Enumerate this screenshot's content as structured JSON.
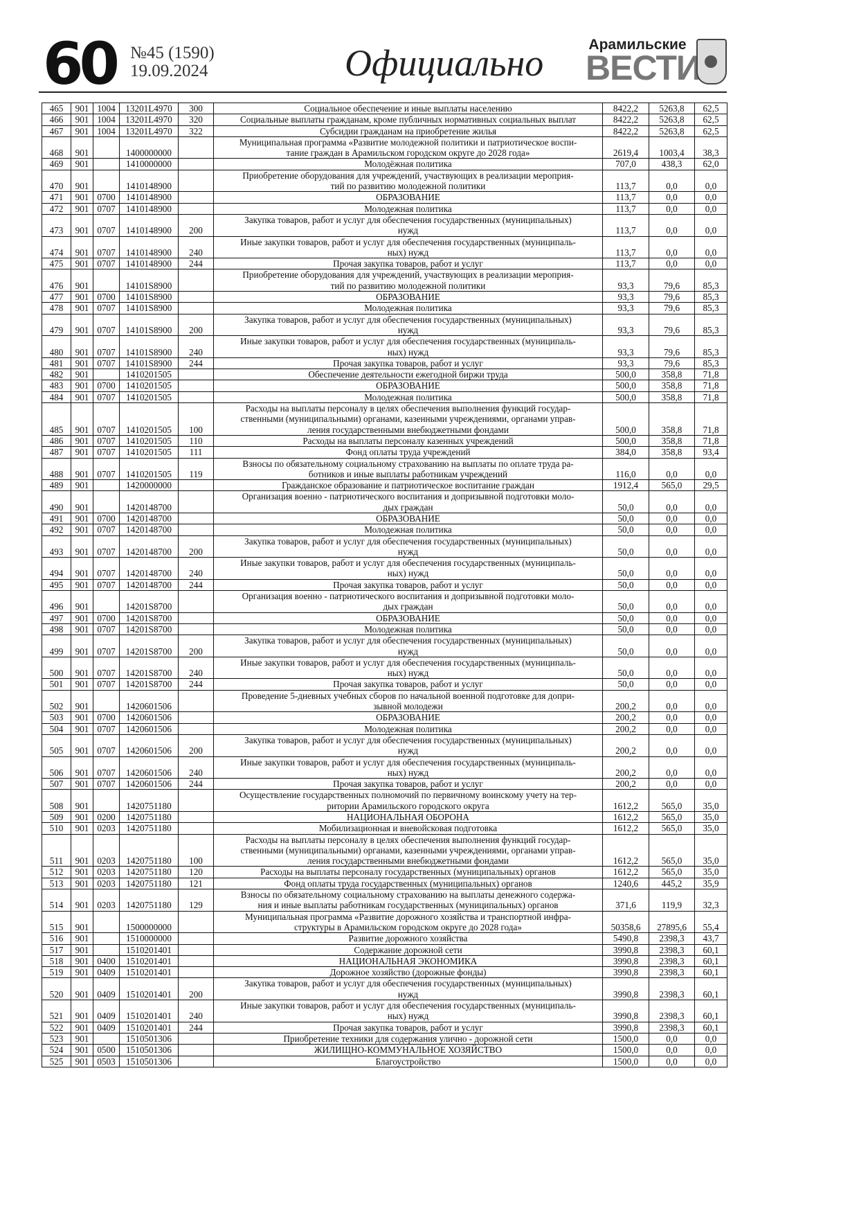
{
  "header": {
    "page_number": "60",
    "issue": "№45 (1590)",
    "date": "19.09.2024",
    "section": "Официально",
    "brand_line1": "Арамильские",
    "brand_line2": "ВЕСТИ"
  },
  "table": {
    "rows": [
      [
        "465",
        "901",
        "1004",
        "13201L4970",
        "300",
        "Социальное обеспечение и иные выплаты населению",
        "8422,2",
        "5263,8",
        "62,5"
      ],
      [
        "466",
        "901",
        "1004",
        "13201L4970",
        "320",
        "Социальные выплаты гражданам, кроме публичных нормативных социальных выплат",
        "8422,2",
        "5263,8",
        "62,5"
      ],
      [
        "467",
        "901",
        "1004",
        "13201L4970",
        "322",
        "Субсидии гражданам на приобретение жилья",
        "8422,2",
        "5263,8",
        "62,5"
      ],
      [
        "468",
        "901",
        "",
        "1400000000",
        "",
        "Муниципальная программа «Развитие молодежной политики и патриотическое воспи-\nтание граждан в Арамильском городском округе до 2028 года»",
        "2619,4",
        "1003,4",
        "38,3"
      ],
      [
        "469",
        "901",
        "",
        "1410000000",
        "",
        "Молодёжная политика",
        "707,0",
        "438,3",
        "62,0"
      ],
      [
        "470",
        "901",
        "",
        "1410148900",
        "",
        "Приобретение оборудования для учреждений, участвующих в реализации мероприя-\nтий по развитию молодежной политики",
        "113,7",
        "0,0",
        "0,0"
      ],
      [
        "471",
        "901",
        "0700",
        "1410148900",
        "",
        "ОБРАЗОВАНИЕ",
        "113,7",
        "0,0",
        "0,0"
      ],
      [
        "472",
        "901",
        "0707",
        "1410148900",
        "",
        "Молодежная политика",
        "113,7",
        "0,0",
        "0,0"
      ],
      [
        "473",
        "901",
        "0707",
        "1410148900",
        "200",
        "Закупка товаров, работ и услуг для обеспечения государственных (муниципальных)\nнужд",
        "113,7",
        "0,0",
        "0,0"
      ],
      [
        "474",
        "901",
        "0707",
        "1410148900",
        "240",
        "Иные закупки товаров, работ и услуг для обеспечения государственных (муниципаль-\nных) нужд",
        "113,7",
        "0,0",
        "0,0"
      ],
      [
        "475",
        "901",
        "0707",
        "1410148900",
        "244",
        "Прочая закупка товаров, работ и услуг",
        "113,7",
        "0,0",
        "0,0"
      ],
      [
        "476",
        "901",
        "",
        "14101S8900",
        "",
        "Приобретение оборудования для учреждений, участвующих в реализации мероприя-\nтий по развитию молодежной политики",
        "93,3",
        "79,6",
        "85,3"
      ],
      [
        "477",
        "901",
        "0700",
        "14101S8900",
        "",
        "ОБРАЗОВАНИЕ",
        "93,3",
        "79,6",
        "85,3"
      ],
      [
        "478",
        "901",
        "0707",
        "14101S8900",
        "",
        "Молодежная политика",
        "93,3",
        "79,6",
        "85,3"
      ],
      [
        "479",
        "901",
        "0707",
        "14101S8900",
        "200",
        "Закупка товаров, работ и услуг для обеспечения государственных (муниципальных)\nнужд",
        "93,3",
        "79,6",
        "85,3"
      ],
      [
        "480",
        "901",
        "0707",
        "14101S8900",
        "240",
        "Иные закупки товаров, работ и услуг для обеспечения государственных (муниципаль-\nных) нужд",
        "93,3",
        "79,6",
        "85,3"
      ],
      [
        "481",
        "901",
        "0707",
        "14101S8900",
        "244",
        "Прочая закупка товаров, работ и услуг",
        "93,3",
        "79,6",
        "85,3"
      ],
      [
        "482",
        "901",
        "",
        "1410201505",
        "",
        "Обеспечение деятельности ежегодной биржи труда",
        "500,0",
        "358,8",
        "71,8"
      ],
      [
        "483",
        "901",
        "0700",
        "1410201505",
        "",
        "ОБРАЗОВАНИЕ",
        "500,0",
        "358,8",
        "71,8"
      ],
      [
        "484",
        "901",
        "0707",
        "1410201505",
        "",
        "Молодежная политика",
        "500,0",
        "358,8",
        "71,8"
      ],
      [
        "485",
        "901",
        "0707",
        "1410201505",
        "100",
        "Расходы на выплаты персоналу в целях обеспечения выполнения функций государ-\nственными (муниципальными) органами, казенными учреждениями, органами управ-\nления государственными внебюджетными фондами",
        "500,0",
        "358,8",
        "71,8"
      ],
      [
        "486",
        "901",
        "0707",
        "1410201505",
        "110",
        "Расходы на выплаты персоналу казенных учреждений",
        "500,0",
        "358,8",
        "71,8"
      ],
      [
        "487",
        "901",
        "0707",
        "1410201505",
        "111",
        "Фонд оплаты труда учреждений",
        "384,0",
        "358,8",
        "93,4"
      ],
      [
        "488",
        "901",
        "0707",
        "1410201505",
        "119",
        "Взносы по обязательному социальному страхованию на выплаты по оплате труда ра-\nботников и иные выплаты работникам учреждений",
        "116,0",
        "0,0",
        "0,0"
      ],
      [
        "489",
        "901",
        "",
        "1420000000",
        "",
        "Гражданское образование и патриотическое воспитание граждан",
        "1912,4",
        "565,0",
        "29,5"
      ],
      [
        "490",
        "901",
        "",
        "1420148700",
        "",
        "Организация военно - патриотического воспитания и допризывной подготовки моло-\nдых граждан",
        "50,0",
        "0,0",
        "0,0"
      ],
      [
        "491",
        "901",
        "0700",
        "1420148700",
        "",
        "ОБРАЗОВАНИЕ",
        "50,0",
        "0,0",
        "0,0"
      ],
      [
        "492",
        "901",
        "0707",
        "1420148700",
        "",
        "Молодежная политика",
        "50,0",
        "0,0",
        "0,0"
      ],
      [
        "493",
        "901",
        "0707",
        "1420148700",
        "200",
        "Закупка товаров, работ и услуг для обеспечения государственных (муниципальных)\nнужд",
        "50,0",
        "0,0",
        "0,0"
      ],
      [
        "494",
        "901",
        "0707",
        "1420148700",
        "240",
        "Иные закупки товаров, работ и услуг для обеспечения государственных (муниципаль-\nных) нужд",
        "50,0",
        "0,0",
        "0,0"
      ],
      [
        "495",
        "901",
        "0707",
        "1420148700",
        "244",
        "Прочая закупка товаров, работ и услуг",
        "50,0",
        "0,0",
        "0,0"
      ],
      [
        "496",
        "901",
        "",
        "14201S8700",
        "",
        "Организация военно - патриотического воспитания и допризывной подготовки моло-\nдых граждан",
        "50,0",
        "0,0",
        "0,0"
      ],
      [
        "497",
        "901",
        "0700",
        "14201S8700",
        "",
        "ОБРАЗОВАНИЕ",
        "50,0",
        "0,0",
        "0,0"
      ],
      [
        "498",
        "901",
        "0707",
        "14201S8700",
        "",
        "Молодежная политика",
        "50,0",
        "0,0",
        "0,0"
      ],
      [
        "499",
        "901",
        "0707",
        "14201S8700",
        "200",
        "Закупка товаров, работ и услуг для обеспечения государственных (муниципальных)\nнужд",
        "50,0",
        "0,0",
        "0,0"
      ],
      [
        "500",
        "901",
        "0707",
        "14201S8700",
        "240",
        "Иные закупки товаров, работ и услуг для обеспечения государственных (муниципаль-\nных) нужд",
        "50,0",
        "0,0",
        "0,0"
      ],
      [
        "501",
        "901",
        "0707",
        "14201S8700",
        "244",
        "Прочая закупка товаров, работ и услуг",
        "50,0",
        "0,0",
        "0,0"
      ],
      [
        "502",
        "901",
        "",
        "1420601506",
        "",
        "Проведение 5-дневных учебных сборов по начальной военной подготовке для допри-\nзывной молодежи",
        "200,2",
        "0,0",
        "0,0"
      ],
      [
        "503",
        "901",
        "0700",
        "1420601506",
        "",
        "ОБРАЗОВАНИЕ",
        "200,2",
        "0,0",
        "0,0"
      ],
      [
        "504",
        "901",
        "0707",
        "1420601506",
        "",
        "Молодежная политика",
        "200,2",
        "0,0",
        "0,0"
      ],
      [
        "505",
        "901",
        "0707",
        "1420601506",
        "200",
        "Закупка товаров, работ и услуг для обеспечения государственных (муниципальных)\nнужд",
        "200,2",
        "0,0",
        "0,0"
      ],
      [
        "506",
        "901",
        "0707",
        "1420601506",
        "240",
        "Иные закупки товаров, работ и услуг для обеспечения государственных (муниципаль-\nных) нужд",
        "200,2",
        "0,0",
        "0,0"
      ],
      [
        "507",
        "901",
        "0707",
        "1420601506",
        "244",
        "Прочая закупка товаров, работ и услуг",
        "200,2",
        "0,0",
        "0,0"
      ],
      [
        "508",
        "901",
        "",
        "1420751180",
        "",
        "Осуществление государственных полномочий по первичному воинскому учету на тер-\nритории Арамильского городского округа",
        "1612,2",
        "565,0",
        "35,0"
      ],
      [
        "509",
        "901",
        "0200",
        "1420751180",
        "",
        "НАЦИОНАЛЬНАЯ ОБОРОНА",
        "1612,2",
        "565,0",
        "35,0"
      ],
      [
        "510",
        "901",
        "0203",
        "1420751180",
        "",
        "Мобилизационная и вневойсковая подготовка",
        "1612,2",
        "565,0",
        "35,0"
      ],
      [
        "511",
        "901",
        "0203",
        "1420751180",
        "100",
        "Расходы на выплаты персоналу в целях обеспечения выполнения функций государ-\nственными (муниципальными) органами, казенными учреждениями, органами управ-\nления государственными внебюджетными фондами",
        "1612,2",
        "565,0",
        "35,0"
      ],
      [
        "512",
        "901",
        "0203",
        "1420751180",
        "120",
        "Расходы на выплаты персоналу государственных (муниципальных) органов",
        "1612,2",
        "565,0",
        "35,0"
      ],
      [
        "513",
        "901",
        "0203",
        "1420751180",
        "121",
        "Фонд оплаты труда государственных (муниципальных) органов",
        "1240,6",
        "445,2",
        "35,9"
      ],
      [
        "514",
        "901",
        "0203",
        "1420751180",
        "129",
        "Взносы по обязательному социальному страхованию на выплаты денежного содержа-\nния и иные выплаты работникам государственных (муниципальных) органов",
        "371,6",
        "119,9",
        "32,3"
      ],
      [
        "515",
        "901",
        "",
        "1500000000",
        "",
        "Муниципальная программа «Развитие дорожного хозяйства и транспортной инфра-\nструктуры в Арамильском городском округе до 2028 года»",
        "50358,6",
        "27895,6",
        "55,4"
      ],
      [
        "516",
        "901",
        "",
        "1510000000",
        "",
        "Развитие дорожного хозяйства",
        "5490,8",
        "2398,3",
        "43,7"
      ],
      [
        "517",
        "901",
        "",
        "1510201401",
        "",
        "Содержание дорожной сети",
        "3990,8",
        "2398,3",
        "60,1"
      ],
      [
        "518",
        "901",
        "0400",
        "1510201401",
        "",
        "НАЦИОНАЛЬНАЯ ЭКОНОМИКА",
        "3990,8",
        "2398,3",
        "60,1"
      ],
      [
        "519",
        "901",
        "0409",
        "1510201401",
        "",
        "Дорожное хозяйство (дорожные фонды)",
        "3990,8",
        "2398,3",
        "60,1"
      ],
      [
        "520",
        "901",
        "0409",
        "1510201401",
        "200",
        "Закупка товаров, работ и услуг для обеспечения государственных (муниципальных)\nнужд",
        "3990,8",
        "2398,3",
        "60,1"
      ],
      [
        "521",
        "901",
        "0409",
        "1510201401",
        "240",
        "Иные закупки товаров, работ и услуг для обеспечения государственных (муниципаль-\nных) нужд",
        "3990,8",
        "2398,3",
        "60,1"
      ],
      [
        "522",
        "901",
        "0409",
        "1510201401",
        "244",
        "Прочая закупка товаров, работ и услуг",
        "3990,8",
        "2398,3",
        "60,1"
      ],
      [
        "523",
        "901",
        "",
        "1510501306",
        "",
        "Приобретение техники для содержания улично - дорожной сети",
        "1500,0",
        "0,0",
        "0,0"
      ],
      [
        "524",
        "901",
        "0500",
        "1510501306",
        "",
        "ЖИЛИЩНО-КОММУНАЛЬНОЕ ХОЗЯЙСТВО",
        "1500,0",
        "0,0",
        "0,0"
      ],
      [
        "525",
        "901",
        "0503",
        "1510501306",
        "",
        "Благоустройство",
        "1500,0",
        "0,0",
        "0,0"
      ]
    ]
  }
}
